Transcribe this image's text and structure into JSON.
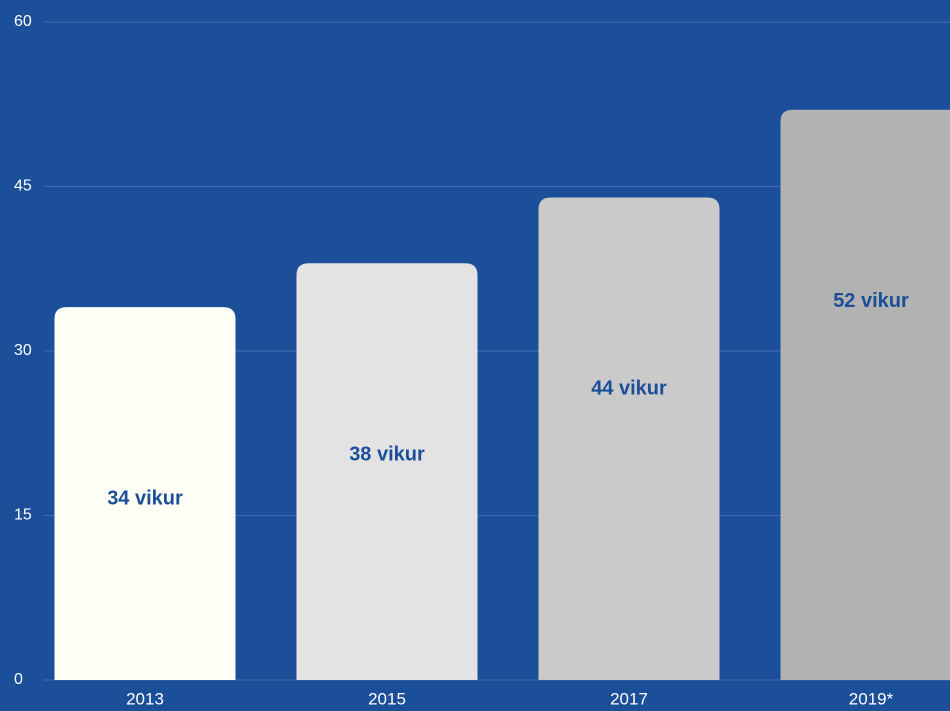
{
  "chart_data": {
    "type": "bar",
    "categories": [
      "2013",
      "2015",
      "2017",
      "2019*"
    ],
    "values": [
      34,
      38,
      44,
      52
    ],
    "value_labels": [
      "34 vikur",
      "38 vikur",
      "44 vikur",
      "52 vikur"
    ],
    "colors": [
      "#fefef4",
      "#e3e3e3",
      "#cacaca",
      "#b2b2b2"
    ],
    "background": "#1c4f99",
    "ylim": [
      0,
      60
    ],
    "yticks": [
      0,
      15,
      30,
      45,
      60
    ],
    "grid": true
  }
}
